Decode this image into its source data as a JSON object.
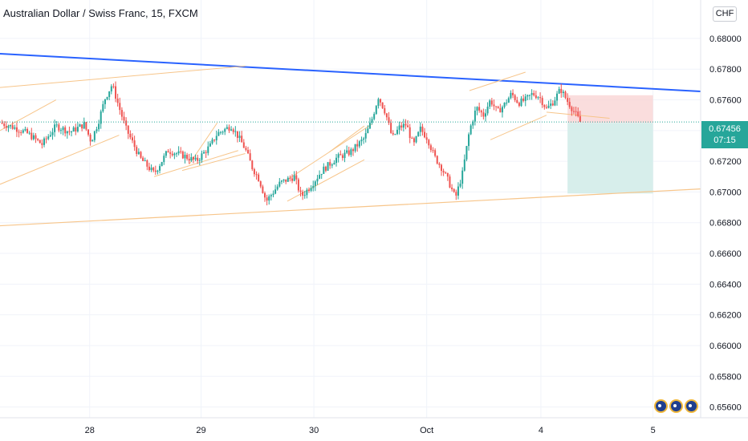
{
  "header": {
    "title": "Australian Dollar / Swiss Franc, 15, FXCM",
    "unit_label": "CHF"
  },
  "price_tag": {
    "price": "0.67456",
    "countdown": "07:15"
  },
  "event_flags": [
    "australia-flag-icon",
    "australia-flag-icon",
    "australia-flag-icon"
  ],
  "colors": {
    "up": "#26a69a",
    "down": "#ef5350",
    "trendline": "#2962ff",
    "channel": "#f7c58a",
    "stop_zone": "#f9d5d4",
    "target_zone": "#d3ece9"
  },
  "chart_data": {
    "type": "candlestick",
    "instrument": "Australian Dollar / Swiss Franc",
    "timeframe": "15",
    "source": "FXCM",
    "x_ticks": [
      "28",
      "29",
      "30",
      "Oct",
      "4",
      "5"
    ],
    "y_ticks": [
      "0.68000",
      "0.67800",
      "0.67600",
      "0.67400",
      "0.67200",
      "0.67000",
      "0.66800",
      "0.66600",
      "0.66400",
      "0.66200",
      "0.66000",
      "0.65800",
      "0.65600"
    ],
    "ylim": [
      0.6553,
      0.6825
    ],
    "x_range": [
      0,
      100
    ],
    "last_price": 0.67456,
    "close_path": [
      [
        0,
        0.6745
      ],
      [
        2,
        0.6742
      ],
      [
        4,
        0.6738
      ],
      [
        6,
        0.6731
      ],
      [
        8,
        0.6743
      ],
      [
        10,
        0.6739
      ],
      [
        12,
        0.6744
      ],
      [
        13,
        0.6733
      ],
      [
        14,
        0.6745
      ],
      [
        15,
        0.6761
      ],
      [
        16,
        0.677
      ],
      [
        17,
        0.6755
      ],
      [
        18,
        0.6741
      ],
      [
        20,
        0.6722
      ],
      [
        22,
        0.6712
      ],
      [
        24,
        0.6727
      ],
      [
        26,
        0.6724
      ],
      [
        28,
        0.672
      ],
      [
        30,
        0.673
      ],
      [
        31,
        0.6738
      ],
      [
        33,
        0.6743
      ],
      [
        34,
        0.6736
      ],
      [
        35,
        0.6728
      ],
      [
        36,
        0.6716
      ],
      [
        37,
        0.6708
      ],
      [
        38,
        0.6694
      ],
      [
        40,
        0.6706
      ],
      [
        42,
        0.671
      ],
      [
        43,
        0.6697
      ],
      [
        44,
        0.6702
      ],
      [
        46,
        0.6714
      ],
      [
        48,
        0.6722
      ],
      [
        50,
        0.6726
      ],
      [
        52,
        0.6735
      ],
      [
        53,
        0.6746
      ],
      [
        54,
        0.6762
      ],
      [
        55,
        0.6752
      ],
      [
        56,
        0.6735
      ],
      [
        57,
        0.6742
      ],
      [
        58,
        0.6744
      ],
      [
        59,
        0.673
      ],
      [
        60,
        0.6741
      ],
      [
        61,
        0.6735
      ],
      [
        62,
        0.6723
      ],
      [
        63,
        0.6716
      ],
      [
        64,
        0.6707
      ],
      [
        65,
        0.6696
      ],
      [
        66,
        0.6712
      ],
      [
        67,
        0.674
      ],
      [
        68,
        0.6755
      ],
      [
        69,
        0.675
      ],
      [
        70,
        0.676
      ],
      [
        71,
        0.6752
      ],
      [
        72,
        0.6757
      ],
      [
        73,
        0.6764
      ],
      [
        74,
        0.6758
      ],
      [
        75,
        0.676
      ],
      [
        76,
        0.6764
      ],
      [
        77,
        0.6762
      ],
      [
        78,
        0.6754
      ],
      [
        79,
        0.6759
      ],
      [
        80,
        0.6767
      ],
      [
        81,
        0.6759
      ],
      [
        82,
        0.6752
      ],
      [
        82.8,
        0.67456
      ]
    ],
    "drawings": {
      "main_trendline": {
        "from": [
          0,
          0.679
        ],
        "to": [
          100,
          0.67655
        ]
      },
      "support_line": {
        "from": [
          0,
          0.6678
        ],
        "to": [
          100,
          0.6702
        ]
      },
      "position_tool": {
        "x_start": 81.0,
        "x_end": 93.2,
        "entry": 0.6745,
        "stop": 0.6763,
        "target": 0.6699
      }
    }
  }
}
